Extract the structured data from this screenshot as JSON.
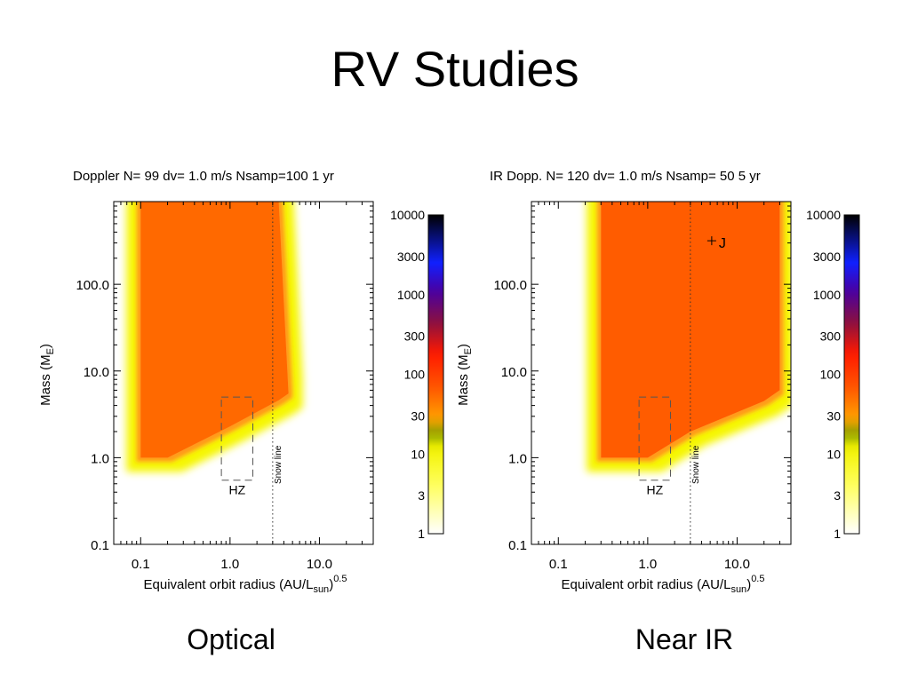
{
  "slide": {
    "title": "RV Studies",
    "captions": [
      "Optical",
      "Near IR"
    ]
  },
  "colorbar": {
    "tick_labels": [
      "10000",
      "3000",
      "1000",
      "300",
      "100",
      "30",
      "10",
      "3",
      "1"
    ],
    "tick_values": [
      10000,
      3000,
      1000,
      300,
      100,
      30,
      10,
      3,
      1
    ],
    "range": [
      1,
      10000
    ],
    "scale": "log",
    "stops": [
      {
        "v": 1,
        "color": "#ffffff"
      },
      {
        "v": 4,
        "color": "#ffff60"
      },
      {
        "v": 12,
        "color": "#f2f200"
      },
      {
        "v": 18,
        "color": "#8aa000"
      },
      {
        "v": 28,
        "color": "#ffa000"
      },
      {
        "v": 70,
        "color": "#ff5500"
      },
      {
        "v": 180,
        "color": "#ff1a00"
      },
      {
        "v": 450,
        "color": "#8a1040"
      },
      {
        "v": 1100,
        "color": "#4a00a0"
      },
      {
        "v": 2500,
        "color": "#1020ff"
      },
      {
        "v": 10000,
        "color": "#000000"
      }
    ]
  },
  "chart_data": [
    {
      "type": "heatmap",
      "title": "Doppler N=  99 dv= 1.0 m/s Nsamp=100  1 yr",
      "xlabel": "Equivalent orbit radius (AU/L",
      "xlabel_sub": "sun",
      "xlabel_sup": "0.5",
      "ylabel": "Mass (M",
      "ylabel_sub": "E",
      "xscale": "log",
      "yscale": "log",
      "xlim": [
        0.05,
        40
      ],
      "ylim": [
        0.1,
        900
      ],
      "xtick_labels": [
        "0.1",
        "1.0",
        "10.0"
      ],
      "xtick_values": [
        0.1,
        1.0,
        10.0
      ],
      "ytick_labels": [
        "0.1",
        "1.0",
        "10.0",
        "100.0"
      ],
      "ytick_values": [
        0.1,
        1.0,
        10.0,
        100.0
      ],
      "fill_value": 55,
      "region_points": [
        [
          0.1,
          900
        ],
        [
          3.5,
          900
        ],
        [
          4.5,
          5.5
        ],
        [
          3.5,
          4.6
        ],
        [
          1.0,
          2.3
        ],
        [
          0.2,
          1.0
        ],
        [
          0.1,
          1.0
        ]
      ],
      "hz_box": {
        "x": [
          0.8,
          1.8
        ],
        "y": [
          0.55,
          5.0
        ],
        "label": "HZ"
      },
      "snow_line": {
        "x": 3.0,
        "label": "Snow line"
      }
    },
    {
      "type": "heatmap",
      "title": "IR Dopp. N= 120 dv= 1.0 m/s Nsamp= 50  5 yr",
      "xlabel": "Equivalent orbit radius (AU/L",
      "xlabel_sub": "sun",
      "xlabel_sup": "0.5",
      "ylabel": "Mass (M",
      "ylabel_sub": "E",
      "xscale": "log",
      "yscale": "log",
      "xlim": [
        0.05,
        40
      ],
      "ylim": [
        0.1,
        900
      ],
      "xtick_labels": [
        "0.1",
        "1.0",
        "10.0"
      ],
      "xtick_values": [
        0.1,
        1.0,
        10.0
      ],
      "ytick_labels": [
        "0.1",
        "1.0",
        "10.0",
        "100.0"
      ],
      "ytick_values": [
        0.1,
        1.0,
        10.0,
        100.0
      ],
      "fill_value": 65,
      "region_points": [
        [
          0.3,
          900
        ],
        [
          30,
          900
        ],
        [
          30,
          6.0
        ],
        [
          20,
          4.5
        ],
        [
          3.0,
          2.0
        ],
        [
          1.0,
          1.0
        ],
        [
          0.45,
          1.0
        ],
        [
          0.3,
          1.0
        ]
      ],
      "hz_box": {
        "x": [
          0.8,
          1.8
        ],
        "y": [
          0.55,
          5.0
        ],
        "label": "HZ"
      },
      "snow_line": {
        "x": 3.0,
        "label": "Snow line"
      },
      "markers": [
        {
          "x": 5.2,
          "y": 318,
          "label": "J"
        }
      ]
    }
  ]
}
